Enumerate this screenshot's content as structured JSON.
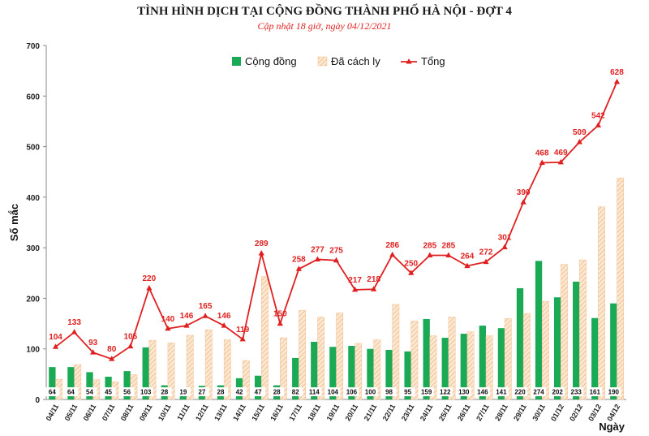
{
  "chart_data": {
    "type": "bar",
    "title": "TÌNH HÌNH DỊCH TẠI CỘNG ĐỒNG THÀNH PHỐ HÀ NỘI - ĐỢT 4",
    "subtitle": "Cập nhật 18 giờ, ngày 04/12/2021",
    "xlabel": "Ngày",
    "ylabel": "Số mắc",
    "ylim": [
      0,
      700
    ],
    "yticks": [
      0,
      100,
      200,
      300,
      400,
      500,
      600,
      700
    ],
    "grid": false,
    "legend_position": "top-center",
    "categories": [
      "04/11",
      "05/11",
      "06/11",
      "07/11",
      "08/11",
      "09/11",
      "10/11",
      "11/11",
      "12/11",
      "13/11",
      "14/11",
      "15/11",
      "16/11",
      "17/11",
      "18/11",
      "19/11",
      "20/11",
      "21/11",
      "22/11",
      "23/11",
      "24/11",
      "25/11",
      "26/11",
      "27/11",
      "28/11",
      "29/11",
      "30/11",
      "01/12",
      "02/12",
      "03/12",
      "04/12"
    ],
    "series": [
      {
        "name": "Cộng đồng",
        "kind": "bar",
        "color": "#1aaa55",
        "values": [
          64,
          64,
          54,
          45,
          56,
          103,
          28,
          19,
          27,
          28,
          42,
          47,
          28,
          82,
          114,
          104,
          106,
          100,
          98,
          95,
          159,
          122,
          130,
          146,
          141,
          220,
          274,
          202,
          233,
          161,
          190
        ]
      },
      {
        "name": "Đã cách ly",
        "kind": "bar",
        "color": "#f6cfa4",
        "values": [
          40,
          69,
          39,
          35,
          49,
          117,
          112,
          127,
          138,
          118,
          77,
          243,
          122,
          176,
          163,
          171,
          111,
          118,
          188,
          155,
          126,
          163,
          134,
          126,
          160,
          170,
          194,
          267,
          276,
          381,
          438
        ]
      },
      {
        "name": "Tổng",
        "kind": "line",
        "color": "#e02020",
        "values": [
          104,
          133,
          93,
          80,
          105,
          220,
          140,
          146,
          165,
          146,
          119,
          289,
          150,
          258,
          277,
          275,
          217,
          218,
          286,
          250,
          285,
          285,
          264,
          272,
          301,
          390,
          468,
          469,
          509,
          542,
          628
        ]
      }
    ]
  }
}
